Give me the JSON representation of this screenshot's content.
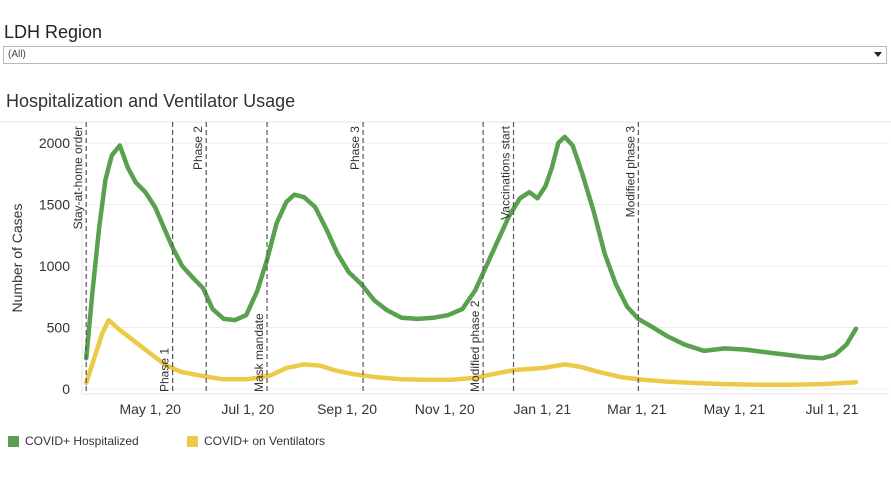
{
  "filter": {
    "title": "LDH Region",
    "selected": "(All)"
  },
  "chart_title": "Hospitalization and Ventilator Usage",
  "colors": {
    "hospitalized": "#59a14f",
    "ventilators": "#edc948",
    "event_line": "#555555",
    "grid": "#eeeeee"
  },
  "legend": [
    {
      "name": "COVID+ Hospitalized",
      "color": "#59a14f"
    },
    {
      "name": "COVID+ on Ventilators",
      "color": "#edc948"
    }
  ],
  "chart_data": {
    "type": "line",
    "title": "Hospitalization and Ventilator Usage",
    "ylabel": "Number of Cases",
    "xlabel": "",
    "xlim": [
      "2020-03-15",
      "2021-07-31"
    ],
    "ylim": [
      0,
      2200
    ],
    "yticks": [
      0,
      500,
      1000,
      1500,
      2000
    ],
    "xticks": [
      {
        "date": "2020-05-01",
        "label": "May 1, 20"
      },
      {
        "date": "2020-07-01",
        "label": "Jul 1, 20"
      },
      {
        "date": "2020-09-01",
        "label": "Sep 1, 20"
      },
      {
        "date": "2020-11-01",
        "label": "Nov 1, 20"
      },
      {
        "date": "2021-01-01",
        "label": "Jan 1, 21"
      },
      {
        "date": "2021-03-01",
        "label": "Mar 1, 21"
      },
      {
        "date": "2021-05-01",
        "label": "May 1, 21"
      },
      {
        "date": "2021-07-01",
        "label": "Jul 1, 21"
      }
    ],
    "grid": "horizontal",
    "legend_position": "bottom-left",
    "events": [
      {
        "date": "2020-03-22",
        "label": "Stay-at-home order",
        "placement": "top"
      },
      {
        "date": "2020-05-15",
        "label": "Phase 1",
        "placement": "bottom"
      },
      {
        "date": "2020-06-05",
        "label": "Phase 2",
        "placement": "top"
      },
      {
        "date": "2020-07-13",
        "label": "Mask mandate",
        "placement": "bottom"
      },
      {
        "date": "2020-09-11",
        "label": "Phase 3",
        "placement": "top"
      },
      {
        "date": "2020-11-25",
        "label": "Modified phase 2",
        "placement": "bottom"
      },
      {
        "date": "2020-12-14",
        "label": "Vaccinations start",
        "placement": "top"
      },
      {
        "date": "2021-03-02",
        "label": "Modified phase 3",
        "placement": "top"
      }
    ],
    "series": [
      {
        "name": "COVID+ Hospitalized",
        "color": "#59a14f",
        "points": [
          [
            "2020-03-22",
            250
          ],
          [
            "2020-03-26",
            800
          ],
          [
            "2020-03-30",
            1300
          ],
          [
            "2020-04-03",
            1700
          ],
          [
            "2020-04-07",
            1900
          ],
          [
            "2020-04-12",
            1980
          ],
          [
            "2020-04-17",
            1800
          ],
          [
            "2020-04-22",
            1680
          ],
          [
            "2020-04-28",
            1600
          ],
          [
            "2020-05-04",
            1480
          ],
          [
            "2020-05-10",
            1300
          ],
          [
            "2020-05-15",
            1150
          ],
          [
            "2020-05-21",
            1000
          ],
          [
            "2020-05-28",
            900
          ],
          [
            "2020-06-03",
            820
          ],
          [
            "2020-06-09",
            650
          ],
          [
            "2020-06-16",
            570
          ],
          [
            "2020-06-23",
            560
          ],
          [
            "2020-06-30",
            600
          ],
          [
            "2020-07-07",
            800
          ],
          [
            "2020-07-13",
            1050
          ],
          [
            "2020-07-19",
            1350
          ],
          [
            "2020-07-25",
            1520
          ],
          [
            "2020-07-30",
            1580
          ],
          [
            "2020-08-05",
            1560
          ],
          [
            "2020-08-12",
            1480
          ],
          [
            "2020-08-19",
            1300
          ],
          [
            "2020-08-26",
            1100
          ],
          [
            "2020-09-02",
            950
          ],
          [
            "2020-09-10",
            850
          ],
          [
            "2020-09-18",
            720
          ],
          [
            "2020-09-26",
            640
          ],
          [
            "2020-10-05",
            580
          ],
          [
            "2020-10-15",
            570
          ],
          [
            "2020-10-25",
            580
          ],
          [
            "2020-11-03",
            600
          ],
          [
            "2020-11-12",
            650
          ],
          [
            "2020-11-20",
            800
          ],
          [
            "2020-11-27",
            1000
          ],
          [
            "2020-12-04",
            1200
          ],
          [
            "2020-12-11",
            1400
          ],
          [
            "2020-12-18",
            1550
          ],
          [
            "2020-12-24",
            1600
          ],
          [
            "2020-12-29",
            1550
          ],
          [
            "2021-01-03",
            1650
          ],
          [
            "2021-01-07",
            1800
          ],
          [
            "2021-01-11",
            2000
          ],
          [
            "2021-01-15",
            2050
          ],
          [
            "2021-01-20",
            1980
          ],
          [
            "2021-01-26",
            1750
          ],
          [
            "2021-02-02",
            1450
          ],
          [
            "2021-02-09",
            1100
          ],
          [
            "2021-02-16",
            850
          ],
          [
            "2021-02-23",
            670
          ],
          [
            "2021-03-02",
            570
          ],
          [
            "2021-03-10",
            510
          ],
          [
            "2021-03-20",
            430
          ],
          [
            "2021-03-31",
            360
          ],
          [
            "2021-04-12",
            310
          ],
          [
            "2021-04-25",
            330
          ],
          [
            "2021-05-08",
            320
          ],
          [
            "2021-05-20",
            300
          ],
          [
            "2021-06-02",
            280
          ],
          [
            "2021-06-14",
            260
          ],
          [
            "2021-06-25",
            250
          ],
          [
            "2021-07-03",
            280
          ],
          [
            "2021-07-10",
            360
          ],
          [
            "2021-07-16",
            490
          ]
        ]
      },
      {
        "name": "COVID+ on Ventilators",
        "color": "#edc948",
        "points": [
          [
            "2020-03-22",
            50
          ],
          [
            "2020-03-27",
            250
          ],
          [
            "2020-04-01",
            450
          ],
          [
            "2020-04-05",
            560
          ],
          [
            "2020-04-12",
            480
          ],
          [
            "2020-04-20",
            400
          ],
          [
            "2020-04-30",
            300
          ],
          [
            "2020-05-10",
            200
          ],
          [
            "2020-05-20",
            140
          ],
          [
            "2020-06-01",
            110
          ],
          [
            "2020-06-15",
            80
          ],
          [
            "2020-07-01",
            80
          ],
          [
            "2020-07-15",
            110
          ],
          [
            "2020-07-25",
            170
          ],
          [
            "2020-08-05",
            200
          ],
          [
            "2020-08-15",
            190
          ],
          [
            "2020-08-25",
            150
          ],
          [
            "2020-09-05",
            120
          ],
          [
            "2020-09-20",
            95
          ],
          [
            "2020-10-05",
            80
          ],
          [
            "2020-10-20",
            75
          ],
          [
            "2020-11-05",
            75
          ],
          [
            "2020-11-20",
            90
          ],
          [
            "2020-12-01",
            120
          ],
          [
            "2020-12-15",
            155
          ],
          [
            "2021-01-01",
            170
          ],
          [
            "2021-01-15",
            200
          ],
          [
            "2021-01-25",
            180
          ],
          [
            "2021-02-05",
            140
          ],
          [
            "2021-02-20",
            95
          ],
          [
            "2021-03-05",
            75
          ],
          [
            "2021-03-20",
            60
          ],
          [
            "2021-04-05",
            50
          ],
          [
            "2021-04-25",
            40
          ],
          [
            "2021-05-15",
            35
          ],
          [
            "2021-06-05",
            35
          ],
          [
            "2021-06-25",
            40
          ],
          [
            "2021-07-16",
            55
          ]
        ]
      }
    ]
  }
}
